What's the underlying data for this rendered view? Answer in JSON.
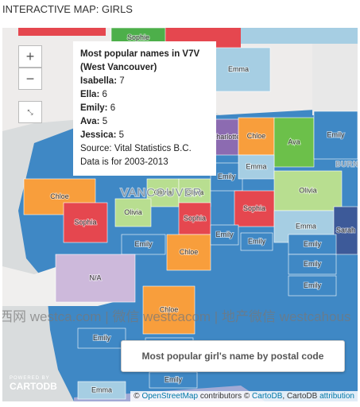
{
  "header": {
    "title": "INTERACTIVE MAP: GIRLS"
  },
  "map": {
    "city_labels": [
      "VANCOUVER",
      "BURN"
    ],
    "regions": [
      {
        "label": "Sophie",
        "color": "#4daf4a"
      },
      {
        "label": "Emma",
        "color": "#a6cee3"
      },
      {
        "label": "Charlotte",
        "color": "#8c6bb1"
      },
      {
        "label": "Chloe",
        "color": "#f89e3c"
      },
      {
        "label": "Ava",
        "color": "#6cc04a"
      },
      {
        "label": "Emily",
        "color": "#3f88c5"
      },
      {
        "label": "Chloe",
        "color": "#f89e3c"
      },
      {
        "label": "Olivia",
        "color": "#b8de90"
      },
      {
        "label": "Olivia",
        "color": "#b8de90"
      },
      {
        "label": "Emily",
        "color": "#3f88c5"
      },
      {
        "label": "Emma",
        "color": "#a6cee3"
      },
      {
        "label": "Olivia",
        "color": "#b8de90"
      },
      {
        "label": "Sophia",
        "color": "#e5474f"
      },
      {
        "label": "Olivia",
        "color": "#b8de90"
      },
      {
        "label": "Sophia",
        "color": "#e5474f"
      },
      {
        "label": "Sophia",
        "color": "#e5474f"
      },
      {
        "label": "Emma",
        "color": "#a6cee3"
      },
      {
        "label": "Sarah",
        "color": "#3d5a99"
      },
      {
        "label": "Emily",
        "color": "#3f88c5"
      },
      {
        "label": "Chloe",
        "color": "#f89e3c"
      },
      {
        "label": "Emily",
        "color": "#3f88c5"
      },
      {
        "label": "Emily",
        "color": "#3f88c5"
      },
      {
        "label": "Emily",
        "color": "#3f88c5"
      },
      {
        "label": "N/A",
        "color": "#cdb9db"
      },
      {
        "label": "Emily",
        "color": "#3f88c5"
      },
      {
        "label": "Emily",
        "color": "#3f88c5"
      },
      {
        "label": "Chloe",
        "color": "#f89e3c"
      },
      {
        "label": "Emily",
        "color": "#3f88c5"
      },
      {
        "label": "Emily",
        "color": "#3f88c5"
      },
      {
        "label": "Emily",
        "color": "#3f88c5"
      },
      {
        "label": "Emma",
        "color": "#a6cee3"
      }
    ]
  },
  "controls": {
    "zoom_in": "+",
    "zoom_out": "−"
  },
  "popup": {
    "title": "Most popular names in V7V (West Vancouver)",
    "items": [
      {
        "name": "Isabella:",
        "count": 7
      },
      {
        "name": "Ella:",
        "count": 6
      },
      {
        "name": "Emily:",
        "count": 6
      },
      {
        "name": "Ava:",
        "count": 5
      },
      {
        "name": "Jessica:",
        "count": 5
      }
    ],
    "source": "Source: Vital Statistics B.C.",
    "note": "Data is for 2003-2013"
  },
  "watermark": "西网 westca.com | 微信 westcacom | 地产微信 westcahous",
  "legend": {
    "title": "Most popular girl's name by postal code"
  },
  "logo": {
    "top": "POWERED BY",
    "brand": "CARTODB"
  },
  "attribution": [
    "©",
    "OpenStreetMap",
    "contributors ©",
    "CartoDB",
    ", CartoDB",
    "attribution"
  ]
}
